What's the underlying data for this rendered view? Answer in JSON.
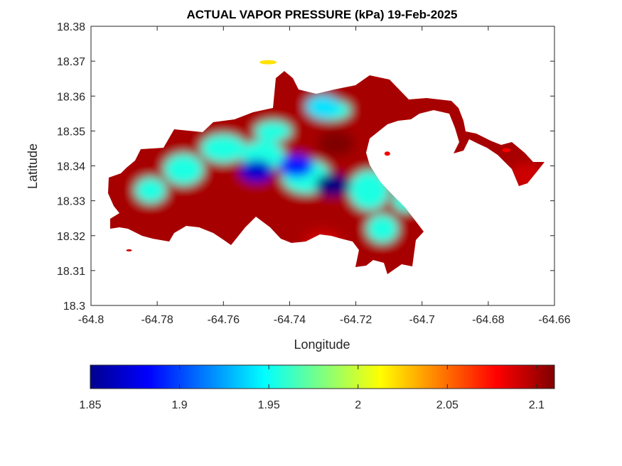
{
  "chart_data": {
    "type": "heatmap",
    "title": "ACTUAL VAPOR PRESSURE (kPa) 19-Feb-2025",
    "xlabel": "Longitude",
    "ylabel": "Latitude",
    "xlim": [
      -64.8,
      -64.66
    ],
    "ylim": [
      18.3,
      18.38
    ],
    "x_ticks": [
      -64.8,
      -64.78,
      -64.76,
      -64.74,
      -64.72,
      -64.7,
      -64.68,
      -64.66
    ],
    "x_tick_labels": [
      "-64.8",
      "-64.78",
      "-64.76",
      "-64.74",
      "-64.72",
      "-64.7",
      "-64.68",
      "-64.66"
    ],
    "y_ticks": [
      18.3,
      18.31,
      18.32,
      18.33,
      18.34,
      18.35,
      18.36,
      18.37,
      18.38
    ],
    "y_tick_labels": [
      "18.3",
      "18.31",
      "18.32",
      "18.33",
      "18.34",
      "18.35",
      "18.36",
      "18.37",
      "18.38"
    ],
    "colormap": "jet",
    "colorbar": {
      "location": "bottom",
      "range": [
        1.85,
        2.11
      ],
      "ticks": [
        1.85,
        1.9,
        1.95,
        2,
        2.05,
        2.1
      ],
      "tick_labels": [
        "1.85",
        "1.9",
        "1.95",
        "2",
        "2.05",
        "2.1"
      ]
    },
    "grid": false,
    "field_summary": {
      "low_zones": [
        {
          "lon": -64.727,
          "lat": 18.3345,
          "value": 1.85
        },
        {
          "lon": -64.75,
          "lat": 18.3385,
          "value": 1.87
        },
        {
          "lon": -64.738,
          "lat": 18.34,
          "value": 1.89
        },
        {
          "lon": -64.73,
          "lat": 18.357,
          "value": 1.94
        }
      ],
      "high_zones": [
        {
          "lon": -64.726,
          "lat": 18.3465,
          "value": 2.11
        },
        {
          "lon": -64.741,
          "lat": 18.329,
          "value": 2.1
        },
        {
          "lon": -64.79,
          "lat": 18.328,
          "value": 2.1
        },
        {
          "lon": -64.762,
          "lat": 18.324,
          "value": 2.1
        },
        {
          "lon": -64.73,
          "lat": 18.318,
          "value": 2.09
        },
        {
          "lon": -64.668,
          "lat": 18.337,
          "value": 2.09
        }
      ],
      "island_edge_value": 2.1
    }
  }
}
